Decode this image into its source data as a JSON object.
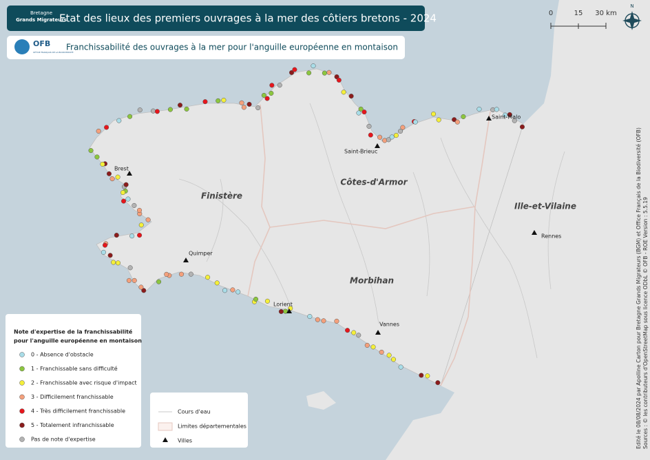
{
  "header": {
    "title": "Etat des lieux des premiers ouvrages à la mer des côtiers bretons - 2024",
    "subtitle": "Franchissabilité des ouvrages à la mer pour l'anguille européenne en montaison",
    "logo_bgm": [
      "Bretagne",
      "Grands Migrateurs"
    ],
    "logo_ofb": "OFB",
    "logo_ofb_sub": "OFFICE FRANÇAIS DE LA BIODIVERSITÉ"
  },
  "scale": {
    "labels": [
      "0",
      "15",
      "30 km"
    ],
    "north": "N"
  },
  "departments": [
    "Finistère",
    "Côtes-d'Armor",
    "Ille-et-Vilaine",
    "Morbihan"
  ],
  "cities": [
    "Brest",
    "Saint-Brieuc",
    "Saint-Malo",
    "Rennes",
    "Quimper",
    "Lorient",
    "Vannes"
  ],
  "legend": {
    "title": [
      "Note d'expertise de la franchissabilité",
      "pour l'anguille européenne en montaison"
    ],
    "items": [
      {
        "label": "0 - Absence d'obstacle",
        "color": "#a9dde8"
      },
      {
        "label": "1 - Franchissable sans difficulté",
        "color": "#8cc63f"
      },
      {
        "label": "2 - Franchissable avec risque d'impact",
        "color": "#f4ef3a"
      },
      {
        "label": "3 - Difficilement franchissable",
        "color": "#f4a07c"
      },
      {
        "label": "4 - Très difficilement franchissable",
        "color": "#e6161c"
      },
      {
        "label": "5 - Totalement infranchissable",
        "color": "#8b1c1c"
      },
      {
        "label": "Pas de note d'expertise",
        "color": "#b3b3b3"
      }
    ]
  },
  "legend2": {
    "items": [
      "Cours d'eau",
      "Limites départementales",
      "Villes"
    ]
  },
  "credits": [
    "Edité le 08/08/2024 par Apolline Carton pour Bretagne Grands Migrateurs (BGM) et Office Français de la Biodiversité (OFB)",
    "Sources : © les contributeurs d'OpenStreetMap sous licence ODbL © OFB - ROE Version : 5.5.19"
  ]
}
